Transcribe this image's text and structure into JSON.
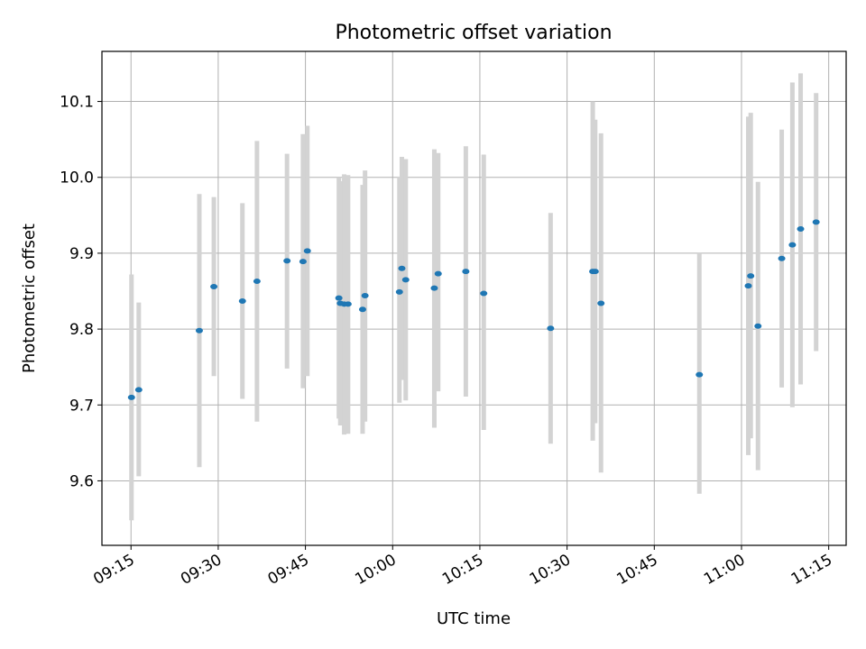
{
  "chart_data": {
    "type": "scatter",
    "title": "Photometric offset variation",
    "xlabel": "UTC time",
    "ylabel": "Photometric offset",
    "xlim": [
      "09:10",
      "11:18"
    ],
    "ylim": [
      9.515,
      10.166
    ],
    "x_ticks": [
      "09:15",
      "09:30",
      "09:45",
      "10:00",
      "10:15",
      "10:30",
      "10:45",
      "11:00",
      "11:15"
    ],
    "y_ticks": [
      "9.6",
      "9.7",
      "9.8",
      "9.9",
      "10.0",
      "10.1"
    ],
    "grid": true,
    "colors": {
      "points": "#1f77b4",
      "error_bars": "#d3d3d3",
      "grid": "#b0b0b0"
    },
    "points": [
      {
        "x": "09:15:05",
        "y": 9.71,
        "ylow": 9.548,
        "yhigh": 9.872
      },
      {
        "x": "09:16:20",
        "y": 9.72,
        "ylow": 9.606,
        "yhigh": 9.835
      },
      {
        "x": "09:26:45",
        "y": 9.798,
        "ylow": 9.618,
        "yhigh": 9.978
      },
      {
        "x": "09:29:15",
        "y": 9.856,
        "ylow": 9.738,
        "yhigh": 9.974
      },
      {
        "x": "09:34:10",
        "y": 9.837,
        "ylow": 9.708,
        "yhigh": 9.966
      },
      {
        "x": "09:36:40",
        "y": 9.863,
        "ylow": 9.678,
        "yhigh": 10.048
      },
      {
        "x": "09:41:50",
        "y": 9.89,
        "ylow": 9.748,
        "yhigh": 10.031
      },
      {
        "x": "09:44:35",
        "y": 9.889,
        "ylow": 9.722,
        "yhigh": 10.057
      },
      {
        "x": "09:45:20",
        "y": 9.903,
        "ylow": 9.738,
        "yhigh": 10.068
      },
      {
        "x": "09:50:45",
        "y": 9.841,
        "ylow": 9.682,
        "yhigh": 10.0
      },
      {
        "x": "09:51:00",
        "y": 9.834,
        "ylow": 9.673,
        "yhigh": 9.995
      },
      {
        "x": "09:51:40",
        "y": 9.833,
        "ylow": 9.661,
        "yhigh": 10.004
      },
      {
        "x": "09:52:20",
        "y": 9.833,
        "ylow": 9.662,
        "yhigh": 10.003
      },
      {
        "x": "09:54:50",
        "y": 9.826,
        "ylow": 9.662,
        "yhigh": 9.99
      },
      {
        "x": "09:55:15",
        "y": 9.844,
        "ylow": 9.678,
        "yhigh": 10.009
      },
      {
        "x": "10:01:10",
        "y": 9.849,
        "ylow": 9.703,
        "yhigh": 10.001
      },
      {
        "x": "10:01:35",
        "y": 9.88,
        "ylow": 9.733,
        "yhigh": 10.027
      },
      {
        "x": "10:02:15",
        "y": 9.865,
        "ylow": 9.706,
        "yhigh": 10.024
      },
      {
        "x": "10:07:10",
        "y": 9.854,
        "ylow": 9.67,
        "yhigh": 10.037
      },
      {
        "x": "10:07:50",
        "y": 9.873,
        "ylow": 9.718,
        "yhigh": 10.032
      },
      {
        "x": "10:12:35",
        "y": 9.876,
        "ylow": 9.711,
        "yhigh": 10.041
      },
      {
        "x": "10:15:40",
        "y": 9.847,
        "ylow": 9.667,
        "yhigh": 10.03
      },
      {
        "x": "10:27:10",
        "y": 9.801,
        "ylow": 9.649,
        "yhigh": 9.953
      },
      {
        "x": "10:34:25",
        "y": 9.876,
        "ylow": 9.653,
        "yhigh": 10.1
      },
      {
        "x": "10:34:50",
        "y": 9.876,
        "ylow": 9.676,
        "yhigh": 10.076
      },
      {
        "x": "10:35:50",
        "y": 9.834,
        "ylow": 9.611,
        "yhigh": 10.058
      },
      {
        "x": "10:52:45",
        "y": 9.74,
        "ylow": 9.583,
        "yhigh": 9.9
      },
      {
        "x": "11:01:10",
        "y": 9.857,
        "ylow": 9.634,
        "yhigh": 10.08
      },
      {
        "x": "11:01:35",
        "y": 9.87,
        "ylow": 9.656,
        "yhigh": 10.085
      },
      {
        "x": "11:02:50",
        "y": 9.804,
        "ylow": 9.614,
        "yhigh": 9.994
      },
      {
        "x": "11:06:55",
        "y": 9.893,
        "ylow": 9.723,
        "yhigh": 10.063
      },
      {
        "x": "11:08:45",
        "y": 9.911,
        "ylow": 9.697,
        "yhigh": 10.125
      },
      {
        "x": "11:10:10",
        "y": 9.932,
        "ylow": 9.727,
        "yhigh": 10.137
      },
      {
        "x": "11:12:50",
        "y": 9.941,
        "ylow": 9.771,
        "yhigh": 10.111
      }
    ]
  }
}
